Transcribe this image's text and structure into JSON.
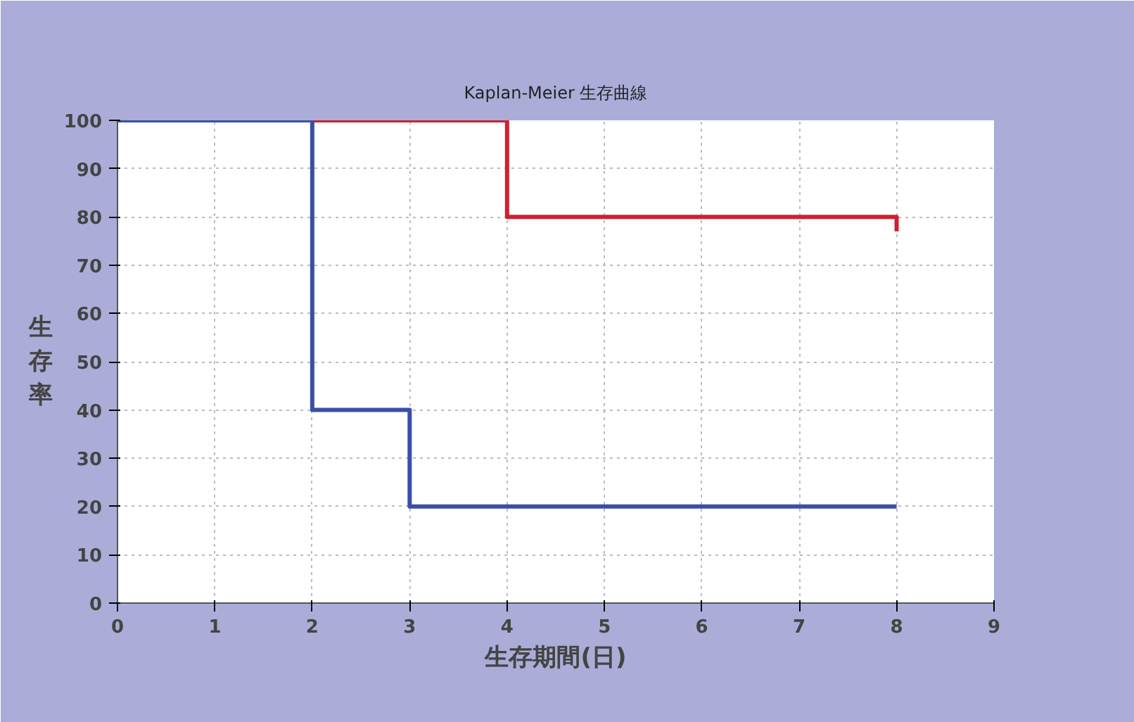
{
  "chart_data": {
    "type": "step",
    "title": "Kaplan-Meier 生存曲線",
    "xlabel": "生存期間(日)",
    "ylabel": "生存率",
    "series": [
      {
        "color": "#d0202e",
        "x": [
          0,
          4,
          8,
          8
        ],
        "values": [
          100,
          80,
          80,
          77
        ]
      },
      {
        "color": "#3a4fa8",
        "x": [
          0,
          2,
          3,
          8
        ],
        "values": [
          100,
          40,
          20,
          20
        ]
      }
    ],
    "xlim": [
      0,
      9
    ],
    "xticks": [
      0,
      1,
      2,
      3,
      4,
      5,
      6,
      7,
      8,
      9
    ],
    "ylim": [
      0,
      100
    ],
    "yticks": [
      0,
      10,
      20,
      30,
      40,
      50,
      60,
      70,
      80,
      90,
      100
    ],
    "grid": true
  }
}
